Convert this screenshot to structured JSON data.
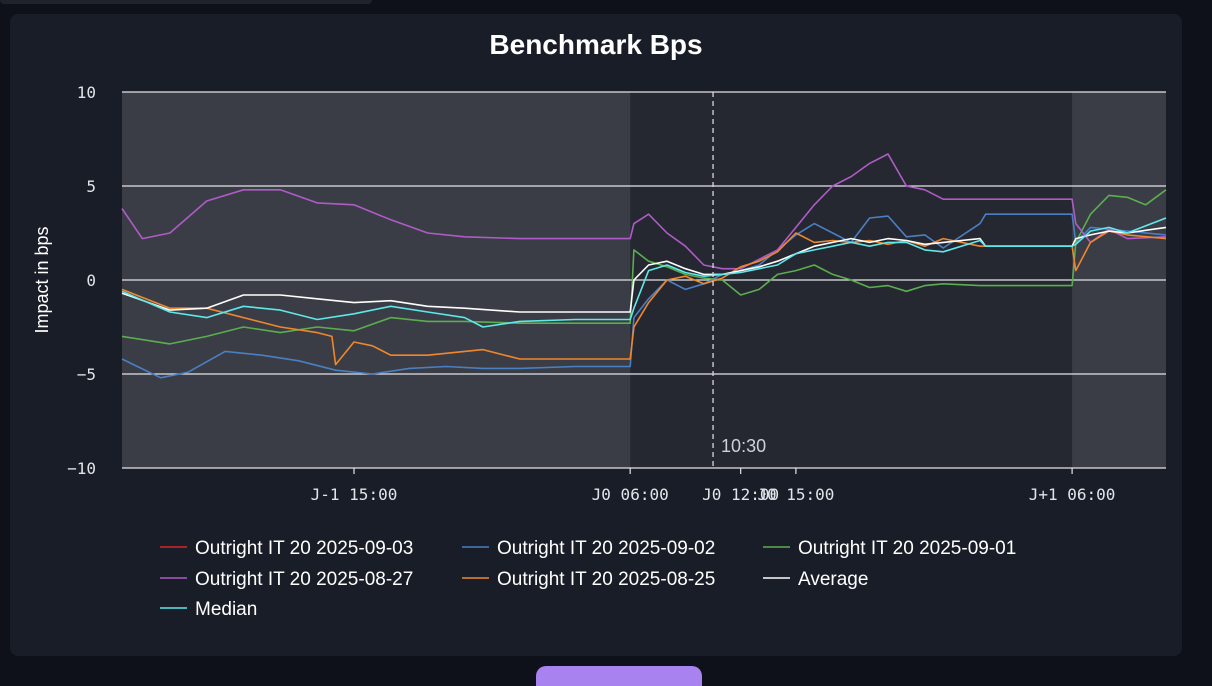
{
  "chart_data": {
    "type": "line",
    "title": "Benchmark Bps",
    "xlabel": "",
    "ylabel": "Impact in bps",
    "ylim": [
      -10,
      10
    ],
    "yticks": [
      10,
      5,
      0,
      -5,
      -10
    ],
    "ytick_labels": [
      "10",
      "5",
      "0",
      "−5",
      "−10"
    ],
    "x_domain_hours": [
      -21.6,
      35.1
    ],
    "xticks": [
      {
        "label": "J-1 15:00",
        "hour": -9
      },
      {
        "label": "J0 06:00",
        "hour": 6
      },
      {
        "label": "J0 12:00",
        "hour": 12
      },
      {
        "label": "J0 15:00",
        "hour": 15
      },
      {
        "label": "J+1 06:00",
        "hour": 30
      }
    ],
    "shaded_regions_hours": [
      [
        -21.6,
        6
      ],
      [
        30,
        35.1
      ]
    ],
    "vline": {
      "hour": 10.5,
      "label": "10:30"
    },
    "grid": true,
    "legend_position": "bottom",
    "series": [
      {
        "name": "Outright IT 20 2025-09-03",
        "color": "#d62728",
        "points": []
      },
      {
        "name": "Outright IT 20 2025-09-02",
        "color": "#4a7fc1",
        "points": [
          [
            -21.6,
            -4.2
          ],
          [
            -19.5,
            -5.2
          ],
          [
            -18,
            -4.9
          ],
          [
            -16,
            -3.8
          ],
          [
            -14,
            -4
          ],
          [
            -12,
            -4.3
          ],
          [
            -10,
            -4.8
          ],
          [
            -8,
            -5
          ],
          [
            -6,
            -4.7
          ],
          [
            -4,
            -4.6
          ],
          [
            -2,
            -4.7
          ],
          [
            0,
            -4.7
          ],
          [
            3,
            -4.6
          ],
          [
            6,
            -4.6
          ],
          [
            6.2,
            -2
          ],
          [
            7,
            -1
          ],
          [
            8,
            0
          ],
          [
            9,
            -0.5
          ],
          [
            10,
            -0.2
          ],
          [
            11,
            0.3
          ],
          [
            12,
            0.5
          ],
          [
            13,
            0.8
          ],
          [
            14,
            1.6
          ],
          [
            15,
            2.4
          ],
          [
            16,
            3
          ],
          [
            17,
            2.5
          ],
          [
            18,
            2
          ],
          [
            19,
            3.3
          ],
          [
            20,
            3.4
          ],
          [
            21,
            2.3
          ],
          [
            22,
            2.4
          ],
          [
            23,
            1.7
          ],
          [
            25,
            3
          ],
          [
            25.3,
            3.5
          ],
          [
            30,
            3.5
          ],
          [
            30.2,
            2
          ],
          [
            31,
            2.8
          ],
          [
            33,
            2.6
          ],
          [
            35.1,
            2.4
          ]
        ]
      },
      {
        "name": "Outright IT 20 2025-09-01",
        "color": "#5cad4e",
        "points": [
          [
            -21.6,
            -3
          ],
          [
            -19,
            -3.4
          ],
          [
            -17,
            -3
          ],
          [
            -15,
            -2.5
          ],
          [
            -13,
            -2.8
          ],
          [
            -11,
            -2.5
          ],
          [
            -9,
            -2.7
          ],
          [
            -7,
            -2
          ],
          [
            -5,
            -2.2
          ],
          [
            -3,
            -2.2
          ],
          [
            0,
            -2.3
          ],
          [
            3,
            -2.3
          ],
          [
            6,
            -2.3
          ],
          [
            6.2,
            1.6
          ],
          [
            7,
            1
          ],
          [
            8,
            0.7
          ],
          [
            9,
            0.3
          ],
          [
            10,
            0.1
          ],
          [
            11,
            0
          ],
          [
            12,
            -0.8
          ],
          [
            13,
            -0.5
          ],
          [
            14,
            0.3
          ],
          [
            15,
            0.5
          ],
          [
            16,
            0.8
          ],
          [
            17,
            0.3
          ],
          [
            18,
            0
          ],
          [
            19,
            -0.4
          ],
          [
            20,
            -0.3
          ],
          [
            21,
            -0.6
          ],
          [
            22,
            -0.3
          ],
          [
            23,
            -0.2
          ],
          [
            25,
            -0.3
          ],
          [
            25.3,
            -0.3
          ],
          [
            30,
            -0.3
          ],
          [
            30.2,
            2
          ],
          [
            31,
            3.5
          ],
          [
            32,
            4.5
          ],
          [
            33,
            4.4
          ],
          [
            34,
            4
          ],
          [
            35.1,
            4.8
          ]
        ]
      },
      {
        "name": "Outright IT 20 2025-08-27",
        "color": "#b05bc7",
        "points": [
          [
            -21.6,
            3.8
          ],
          [
            -20.5,
            2.2
          ],
          [
            -19,
            2.5
          ],
          [
            -17,
            4.2
          ],
          [
            -15,
            4.8
          ],
          [
            -13,
            4.8
          ],
          [
            -11,
            4.1
          ],
          [
            -9,
            4
          ],
          [
            -7,
            3.2
          ],
          [
            -5,
            2.5
          ],
          [
            -3,
            2.3
          ],
          [
            0,
            2.2
          ],
          [
            3,
            2.2
          ],
          [
            6,
            2.2
          ],
          [
            6.2,
            3
          ],
          [
            7,
            3.5
          ],
          [
            8,
            2.5
          ],
          [
            9,
            1.8
          ],
          [
            10,
            0.8
          ],
          [
            11,
            0.6
          ],
          [
            12,
            0.6
          ],
          [
            13,
            1.1
          ],
          [
            14,
            1.6
          ],
          [
            15,
            2.8
          ],
          [
            16,
            4
          ],
          [
            17,
            5
          ],
          [
            18,
            5.5
          ],
          [
            19,
            6.2
          ],
          [
            20,
            6.7
          ],
          [
            21,
            5
          ],
          [
            22,
            4.8
          ],
          [
            23,
            4.3
          ],
          [
            25,
            4.3
          ],
          [
            25.3,
            4.3
          ],
          [
            30,
            4.3
          ],
          [
            30.2,
            3
          ],
          [
            31,
            2
          ],
          [
            32,
            2.7
          ],
          [
            33,
            2.2
          ],
          [
            35.1,
            2.3
          ]
        ]
      },
      {
        "name": "Outright IT 20 2025-08-25",
        "color": "#f0872c",
        "points": [
          [
            -21.6,
            -0.5
          ],
          [
            -19,
            -1.5
          ],
          [
            -17,
            -1.5
          ],
          [
            -15,
            -2
          ],
          [
            -13,
            -2.5
          ],
          [
            -11,
            -2.8
          ],
          [
            -10.2,
            -3
          ],
          [
            -10,
            -4.5
          ],
          [
            -9,
            -3.3
          ],
          [
            -8,
            -3.5
          ],
          [
            -7,
            -4
          ],
          [
            -5,
            -4
          ],
          [
            -3,
            -3.8
          ],
          [
            -2,
            -3.7
          ],
          [
            0,
            -4.2
          ],
          [
            3,
            -4.2
          ],
          [
            6,
            -4.2
          ],
          [
            6.2,
            -2.5
          ],
          [
            7,
            -1.2
          ],
          [
            8,
            0
          ],
          [
            9,
            0.2
          ],
          [
            10,
            -0.2
          ],
          [
            11,
            0.1
          ],
          [
            12,
            0.7
          ],
          [
            13,
            1
          ],
          [
            14,
            1.5
          ],
          [
            15,
            2.5
          ],
          [
            16,
            2
          ],
          [
            17,
            2.1
          ],
          [
            18,
            2
          ],
          [
            19,
            2.1
          ],
          [
            20,
            1.9
          ],
          [
            21,
            2.1
          ],
          [
            22,
            1.8
          ],
          [
            23,
            2.2
          ],
          [
            25,
            1.8
          ],
          [
            25.3,
            1.8
          ],
          [
            30,
            1.8
          ],
          [
            30.2,
            0.5
          ],
          [
            31,
            2
          ],
          [
            32,
            2.6
          ],
          [
            33,
            2.4
          ],
          [
            35.1,
            2.2
          ]
        ]
      },
      {
        "name": "Average",
        "color": "#ffffff",
        "points": [
          [
            -21.6,
            -0.7
          ],
          [
            -19,
            -1.6
          ],
          [
            -17,
            -1.5
          ],
          [
            -15,
            -0.8
          ],
          [
            -13,
            -0.8
          ],
          [
            -11,
            -1
          ],
          [
            -9,
            -1.2
          ],
          [
            -7,
            -1.1
          ],
          [
            -5,
            -1.4
          ],
          [
            -3,
            -1.5
          ],
          [
            0,
            -1.7
          ],
          [
            3,
            -1.7
          ],
          [
            6,
            -1.7
          ],
          [
            6.2,
            0
          ],
          [
            7,
            0.8
          ],
          [
            8,
            1
          ],
          [
            9,
            0.6
          ],
          [
            10,
            0.3
          ],
          [
            11,
            0.3
          ],
          [
            12,
            0.5
          ],
          [
            13,
            0.7
          ],
          [
            14,
            1
          ],
          [
            15,
            1.4
          ],
          [
            16,
            1.8
          ],
          [
            17,
            2
          ],
          [
            18,
            2.2
          ],
          [
            19,
            2
          ],
          [
            20,
            2.2
          ],
          [
            21,
            2.1
          ],
          [
            22,
            1.9
          ],
          [
            23,
            2
          ],
          [
            25,
            2.2
          ],
          [
            25.3,
            1.8
          ],
          [
            30,
            1.8
          ],
          [
            30.2,
            2.2
          ],
          [
            31,
            2.4
          ],
          [
            32,
            2.6
          ],
          [
            33,
            2.5
          ],
          [
            35.1,
            2.8
          ]
        ]
      },
      {
        "name": "Median",
        "color": "#5ee8ea",
        "points": [
          [
            -21.6,
            -0.6
          ],
          [
            -19,
            -1.7
          ],
          [
            -17,
            -2
          ],
          [
            -15,
            -1.4
          ],
          [
            -13,
            -1.6
          ],
          [
            -11,
            -2.1
          ],
          [
            -9,
            -1.8
          ],
          [
            -7,
            -1.4
          ],
          [
            -5,
            -1.7
          ],
          [
            -3,
            -2
          ],
          [
            -2,
            -2.5
          ],
          [
            0,
            -2.2
          ],
          [
            3,
            -2.1
          ],
          [
            6,
            -2.1
          ],
          [
            6.2,
            -1.5
          ],
          [
            7,
            0.5
          ],
          [
            8,
            0.8
          ],
          [
            9,
            0.4
          ],
          [
            10,
            0.2
          ],
          [
            11,
            0.3
          ],
          [
            12,
            0.4
          ],
          [
            13,
            0.6
          ],
          [
            14,
            0.8
          ],
          [
            15,
            1.4
          ],
          [
            16,
            1.6
          ],
          [
            17,
            1.8
          ],
          [
            18,
            2
          ],
          [
            19,
            1.8
          ],
          [
            20,
            2
          ],
          [
            21,
            2
          ],
          [
            22,
            1.6
          ],
          [
            23,
            1.5
          ],
          [
            25,
            2.1
          ],
          [
            25.3,
            1.8
          ],
          [
            30,
            1.8
          ],
          [
            30.2,
            1.9
          ],
          [
            31,
            2.6
          ],
          [
            32,
            2.8
          ],
          [
            33,
            2.5
          ],
          [
            35.1,
            3.3
          ]
        ]
      }
    ]
  }
}
